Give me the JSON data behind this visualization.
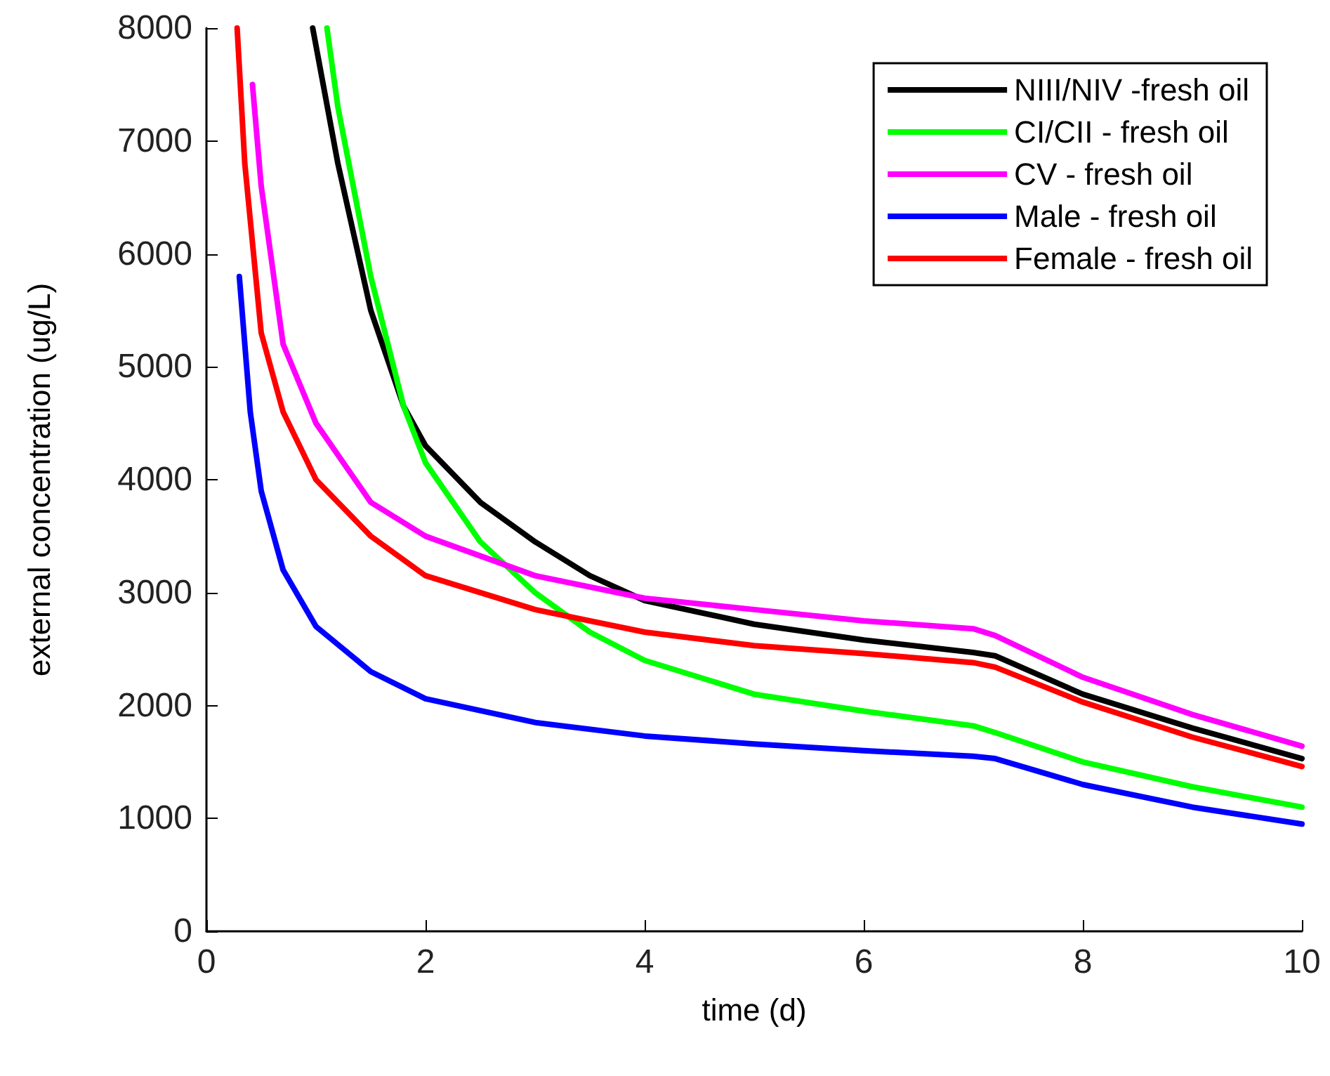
{
  "chart_data": {
    "type": "line",
    "xlabel": "time (d)",
    "ylabel": "external concentration (ug/L)",
    "xlim": [
      0,
      10
    ],
    "xticks": [
      0,
      2,
      4,
      6,
      8,
      10
    ],
    "ylim": [
      0,
      8000
    ],
    "yticks": [
      0,
      1000,
      2000,
      3000,
      4000,
      5000,
      6000,
      7000,
      8000
    ],
    "legend": "top right",
    "marker": "none",
    "line_style": "solid",
    "series": [
      {
        "name": "NIII/NIV -fresh oil",
        "color": "#000000",
        "x": [
          0.97,
          1.2,
          1.5,
          1.8,
          2,
          2.5,
          3,
          3.5,
          4,
          5,
          6,
          7,
          7.2,
          8,
          9,
          10
        ],
        "values": [
          8000,
          6800,
          5500,
          4650,
          4300,
          3800,
          3450,
          3150,
          2930,
          2720,
          2580,
          2470,
          2440,
          2100,
          1800,
          1530
        ]
      },
      {
        "name": "CI/CII - fresh oil",
        "color": "#00ff00",
        "x": [
          1.1,
          1.2,
          1.5,
          1.8,
          2,
          2.5,
          3,
          3.5,
          4,
          5,
          6,
          7,
          7.2,
          8,
          9,
          10
        ],
        "values": [
          8000,
          7300,
          5800,
          4650,
          4150,
          3450,
          3000,
          2650,
          2400,
          2100,
          1950,
          1820,
          1760,
          1500,
          1280,
          1100
        ]
      },
      {
        "name": "CV - fresh oil",
        "color": "#ff00ff",
        "x": [
          0.42,
          0.5,
          0.7,
          1,
          1.5,
          2,
          3,
          4,
          5,
          6,
          7,
          7.2,
          8,
          9,
          10
        ],
        "values": [
          7500,
          6600,
          5200,
          4500,
          3800,
          3500,
          3150,
          2950,
          2850,
          2750,
          2680,
          2620,
          2250,
          1920,
          1640
        ]
      },
      {
        "name": "Male - fresh oil",
        "color": "#0000ff",
        "x": [
          0.3,
          0.4,
          0.5,
          0.7,
          1,
          1.5,
          2,
          3,
          4,
          5,
          6,
          7,
          7.2,
          8,
          9,
          10
        ],
        "values": [
          5800,
          4600,
          3900,
          3200,
          2700,
          2300,
          2060,
          1850,
          1730,
          1660,
          1600,
          1550,
          1530,
          1300,
          1100,
          950
        ]
      },
      {
        "name": "Female - fresh oil",
        "color": "#ff0000",
        "x": [
          0.28,
          0.35,
          0.5,
          0.7,
          1,
          1.5,
          2,
          3,
          4,
          5,
          6,
          7,
          7.2,
          8,
          9,
          10
        ],
        "values": [
          8000,
          6800,
          5300,
          4600,
          4000,
          3500,
          3150,
          2850,
          2650,
          2530,
          2460,
          2380,
          2340,
          2030,
          1720,
          1460
        ]
      }
    ]
  }
}
